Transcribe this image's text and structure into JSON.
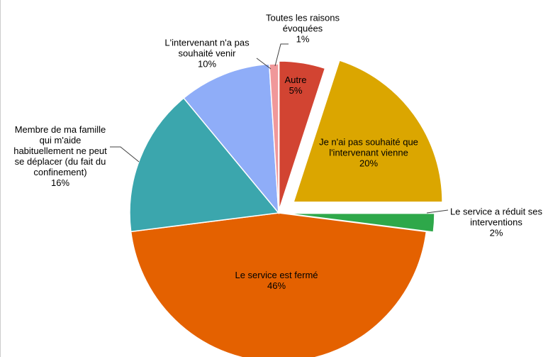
{
  "chart_data": {
    "type": "pie",
    "categories": [
      "Autre",
      "Je n'ai pas souhaité que l'intervenant vienne",
      "Le service a réduit ses interventions",
      "Le service est fermé",
      "Membre de ma famille qui m'aide habituellement ne peut se déplacer (du fait du confinement)",
      "L'intervenant n'a pas souhaité venir",
      "Toutes les raisons évoquées"
    ],
    "values": [
      5,
      20,
      2,
      46,
      16,
      10,
      1
    ],
    "value_labels": [
      "5%",
      "20%",
      "2%",
      "46%",
      "16%",
      "10%",
      "1%"
    ],
    "colors": [
      "#d24432",
      "#dba600",
      "#2ea84a",
      "#e46100",
      "#3ba6ad",
      "#8fadf8",
      "#f0989a"
    ]
  }
}
